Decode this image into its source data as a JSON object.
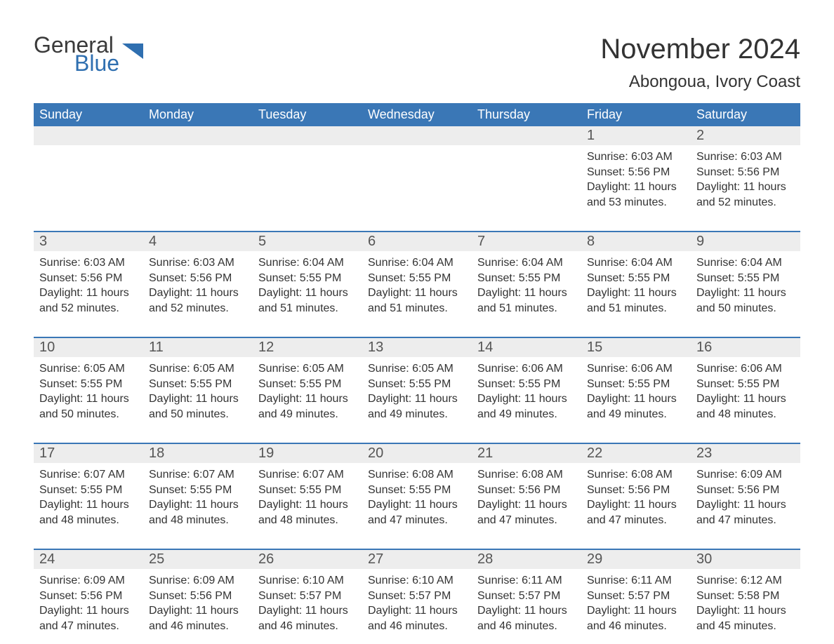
{
  "brand": {
    "general": "General",
    "blue": "Blue",
    "triangle_color": "#2f6fb0"
  },
  "title": "November 2024",
  "location": "Abongoua, Ivory Coast",
  "colors": {
    "header_bg": "#3a77b6",
    "header_text": "#ffffff",
    "strip_bg": "#ededed",
    "week_border": "#3a77b6",
    "body_text": "#333333",
    "background": "#ffffff"
  },
  "dow": [
    "Sunday",
    "Monday",
    "Tuesday",
    "Wednesday",
    "Thursday",
    "Friday",
    "Saturday"
  ],
  "weeks": [
    [
      null,
      null,
      null,
      null,
      null,
      {
        "n": "1",
        "sr": "6:03 AM",
        "ss": "5:56 PM",
        "dl": "11 hours and 53 minutes."
      },
      {
        "n": "2",
        "sr": "6:03 AM",
        "ss": "5:56 PM",
        "dl": "11 hours and 52 minutes."
      }
    ],
    [
      {
        "n": "3",
        "sr": "6:03 AM",
        "ss": "5:56 PM",
        "dl": "11 hours and 52 minutes."
      },
      {
        "n": "4",
        "sr": "6:03 AM",
        "ss": "5:56 PM",
        "dl": "11 hours and 52 minutes."
      },
      {
        "n": "5",
        "sr": "6:04 AM",
        "ss": "5:55 PM",
        "dl": "11 hours and 51 minutes."
      },
      {
        "n": "6",
        "sr": "6:04 AM",
        "ss": "5:55 PM",
        "dl": "11 hours and 51 minutes."
      },
      {
        "n": "7",
        "sr": "6:04 AM",
        "ss": "5:55 PM",
        "dl": "11 hours and 51 minutes."
      },
      {
        "n": "8",
        "sr": "6:04 AM",
        "ss": "5:55 PM",
        "dl": "11 hours and 51 minutes."
      },
      {
        "n": "9",
        "sr": "6:04 AM",
        "ss": "5:55 PM",
        "dl": "11 hours and 50 minutes."
      }
    ],
    [
      {
        "n": "10",
        "sr": "6:05 AM",
        "ss": "5:55 PM",
        "dl": "11 hours and 50 minutes."
      },
      {
        "n": "11",
        "sr": "6:05 AM",
        "ss": "5:55 PM",
        "dl": "11 hours and 50 minutes."
      },
      {
        "n": "12",
        "sr": "6:05 AM",
        "ss": "5:55 PM",
        "dl": "11 hours and 49 minutes."
      },
      {
        "n": "13",
        "sr": "6:05 AM",
        "ss": "5:55 PM",
        "dl": "11 hours and 49 minutes."
      },
      {
        "n": "14",
        "sr": "6:06 AM",
        "ss": "5:55 PM",
        "dl": "11 hours and 49 minutes."
      },
      {
        "n": "15",
        "sr": "6:06 AM",
        "ss": "5:55 PM",
        "dl": "11 hours and 49 minutes."
      },
      {
        "n": "16",
        "sr": "6:06 AM",
        "ss": "5:55 PM",
        "dl": "11 hours and 48 minutes."
      }
    ],
    [
      {
        "n": "17",
        "sr": "6:07 AM",
        "ss": "5:55 PM",
        "dl": "11 hours and 48 minutes."
      },
      {
        "n": "18",
        "sr": "6:07 AM",
        "ss": "5:55 PM",
        "dl": "11 hours and 48 minutes."
      },
      {
        "n": "19",
        "sr": "6:07 AM",
        "ss": "5:55 PM",
        "dl": "11 hours and 48 minutes."
      },
      {
        "n": "20",
        "sr": "6:08 AM",
        "ss": "5:55 PM",
        "dl": "11 hours and 47 minutes."
      },
      {
        "n": "21",
        "sr": "6:08 AM",
        "ss": "5:56 PM",
        "dl": "11 hours and 47 minutes."
      },
      {
        "n": "22",
        "sr": "6:08 AM",
        "ss": "5:56 PM",
        "dl": "11 hours and 47 minutes."
      },
      {
        "n": "23",
        "sr": "6:09 AM",
        "ss": "5:56 PM",
        "dl": "11 hours and 47 minutes."
      }
    ],
    [
      {
        "n": "24",
        "sr": "6:09 AM",
        "ss": "5:56 PM",
        "dl": "11 hours and 47 minutes."
      },
      {
        "n": "25",
        "sr": "6:09 AM",
        "ss": "5:56 PM",
        "dl": "11 hours and 46 minutes."
      },
      {
        "n": "26",
        "sr": "6:10 AM",
        "ss": "5:57 PM",
        "dl": "11 hours and 46 minutes."
      },
      {
        "n": "27",
        "sr": "6:10 AM",
        "ss": "5:57 PM",
        "dl": "11 hours and 46 minutes."
      },
      {
        "n": "28",
        "sr": "6:11 AM",
        "ss": "5:57 PM",
        "dl": "11 hours and 46 minutes."
      },
      {
        "n": "29",
        "sr": "6:11 AM",
        "ss": "5:57 PM",
        "dl": "11 hours and 46 minutes."
      },
      {
        "n": "30",
        "sr": "6:12 AM",
        "ss": "5:58 PM",
        "dl": "11 hours and 45 minutes."
      }
    ]
  ],
  "labels": {
    "sunrise": "Sunrise:",
    "sunset": "Sunset:",
    "daylight": "Daylight:"
  }
}
